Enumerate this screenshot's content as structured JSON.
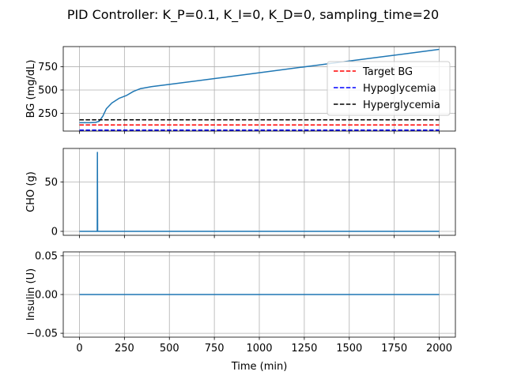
{
  "figure": {
    "title": "PID Controller: K_P=0.1, K_I=0, K_D=0, sampling_time=20"
  },
  "chart_data": [
    {
      "type": "line",
      "panel": "bg",
      "title": "",
      "xlabel": "",
      "ylabel": "BG (mg/dL)",
      "xlim": [
        -90,
        2090
      ],
      "ylim": [
        60,
        965
      ],
      "xticks": [
        0,
        250,
        500,
        750,
        1000,
        1250,
        1500,
        1750,
        2000
      ],
      "xtick_labels_visible": false,
      "yticks": [
        250,
        500,
        750
      ],
      "ytick_labels": [
        "250",
        "500",
        "750"
      ],
      "grid": true,
      "legend": {
        "placement": "upper-right"
      },
      "series": [
        {
          "name": "",
          "color": "#1f77b4",
          "dash": "solid",
          "x": [
            0,
            60,
            90,
            110,
            130,
            150,
            180,
            220,
            260,
            300,
            340,
            400,
            500,
            700,
            900,
            1100,
            1300,
            1500,
            1700,
            1900,
            2000
          ],
          "y": [
            150,
            150,
            153,
            165,
            220,
            300,
            360,
            410,
            440,
            485,
            515,
            535,
            560,
            610,
            660,
            710,
            760,
            810,
            860,
            910,
            935
          ]
        },
        {
          "name": "Target BG",
          "color": "#ff0000",
          "dash": "dashed",
          "x": [
            0,
            2000
          ],
          "y": [
            125,
            125
          ]
        },
        {
          "name": "Hypoglycemia",
          "color": "#0000ff",
          "dash": "dashed",
          "x": [
            0,
            2000
          ],
          "y": [
            70,
            70
          ]
        },
        {
          "name": "Hyperglycemia",
          "color": "#000000",
          "dash": "dashed",
          "x": [
            0,
            2000
          ],
          "y": [
            180,
            180
          ]
        }
      ]
    },
    {
      "type": "line",
      "panel": "cho",
      "title": "",
      "xlabel": "",
      "ylabel": "CHO (g)",
      "xlim": [
        -90,
        2090
      ],
      "ylim": [
        -4,
        84
      ],
      "xticks": [
        0,
        250,
        500,
        750,
        1000,
        1250,
        1500,
        1750,
        2000
      ],
      "xtick_labels_visible": false,
      "yticks": [
        0,
        50
      ],
      "ytick_labels": [
        "0",
        "50"
      ],
      "grid": true,
      "series": [
        {
          "name": "",
          "color": "#1f77b4",
          "dash": "solid",
          "x": [
            0,
            99,
            100,
            101,
            2000
          ],
          "y": [
            0,
            0,
            80,
            0,
            0
          ]
        }
      ]
    },
    {
      "type": "line",
      "panel": "insulin",
      "title": "",
      "xlabel": "Time (min)",
      "ylabel": "Insulin (U)",
      "xlim": [
        -90,
        2090
      ],
      "ylim": [
        -0.055,
        0.055
      ],
      "xticks": [
        0,
        250,
        500,
        750,
        1000,
        1250,
        1500,
        1750,
        2000
      ],
      "xtick_labels": [
        "0",
        "250",
        "500",
        "750",
        "1000",
        "1250",
        "1500",
        "1750",
        "2000"
      ],
      "xtick_labels_visible": true,
      "yticks": [
        -0.05,
        0.0,
        0.05
      ],
      "ytick_labels": [
        "−0.05",
        "0.00",
        "0.05"
      ],
      "grid": true,
      "series": [
        {
          "name": "",
          "color": "#1f77b4",
          "dash": "solid",
          "x": [
            0,
            2000
          ],
          "y": [
            0,
            0
          ]
        }
      ]
    }
  ]
}
